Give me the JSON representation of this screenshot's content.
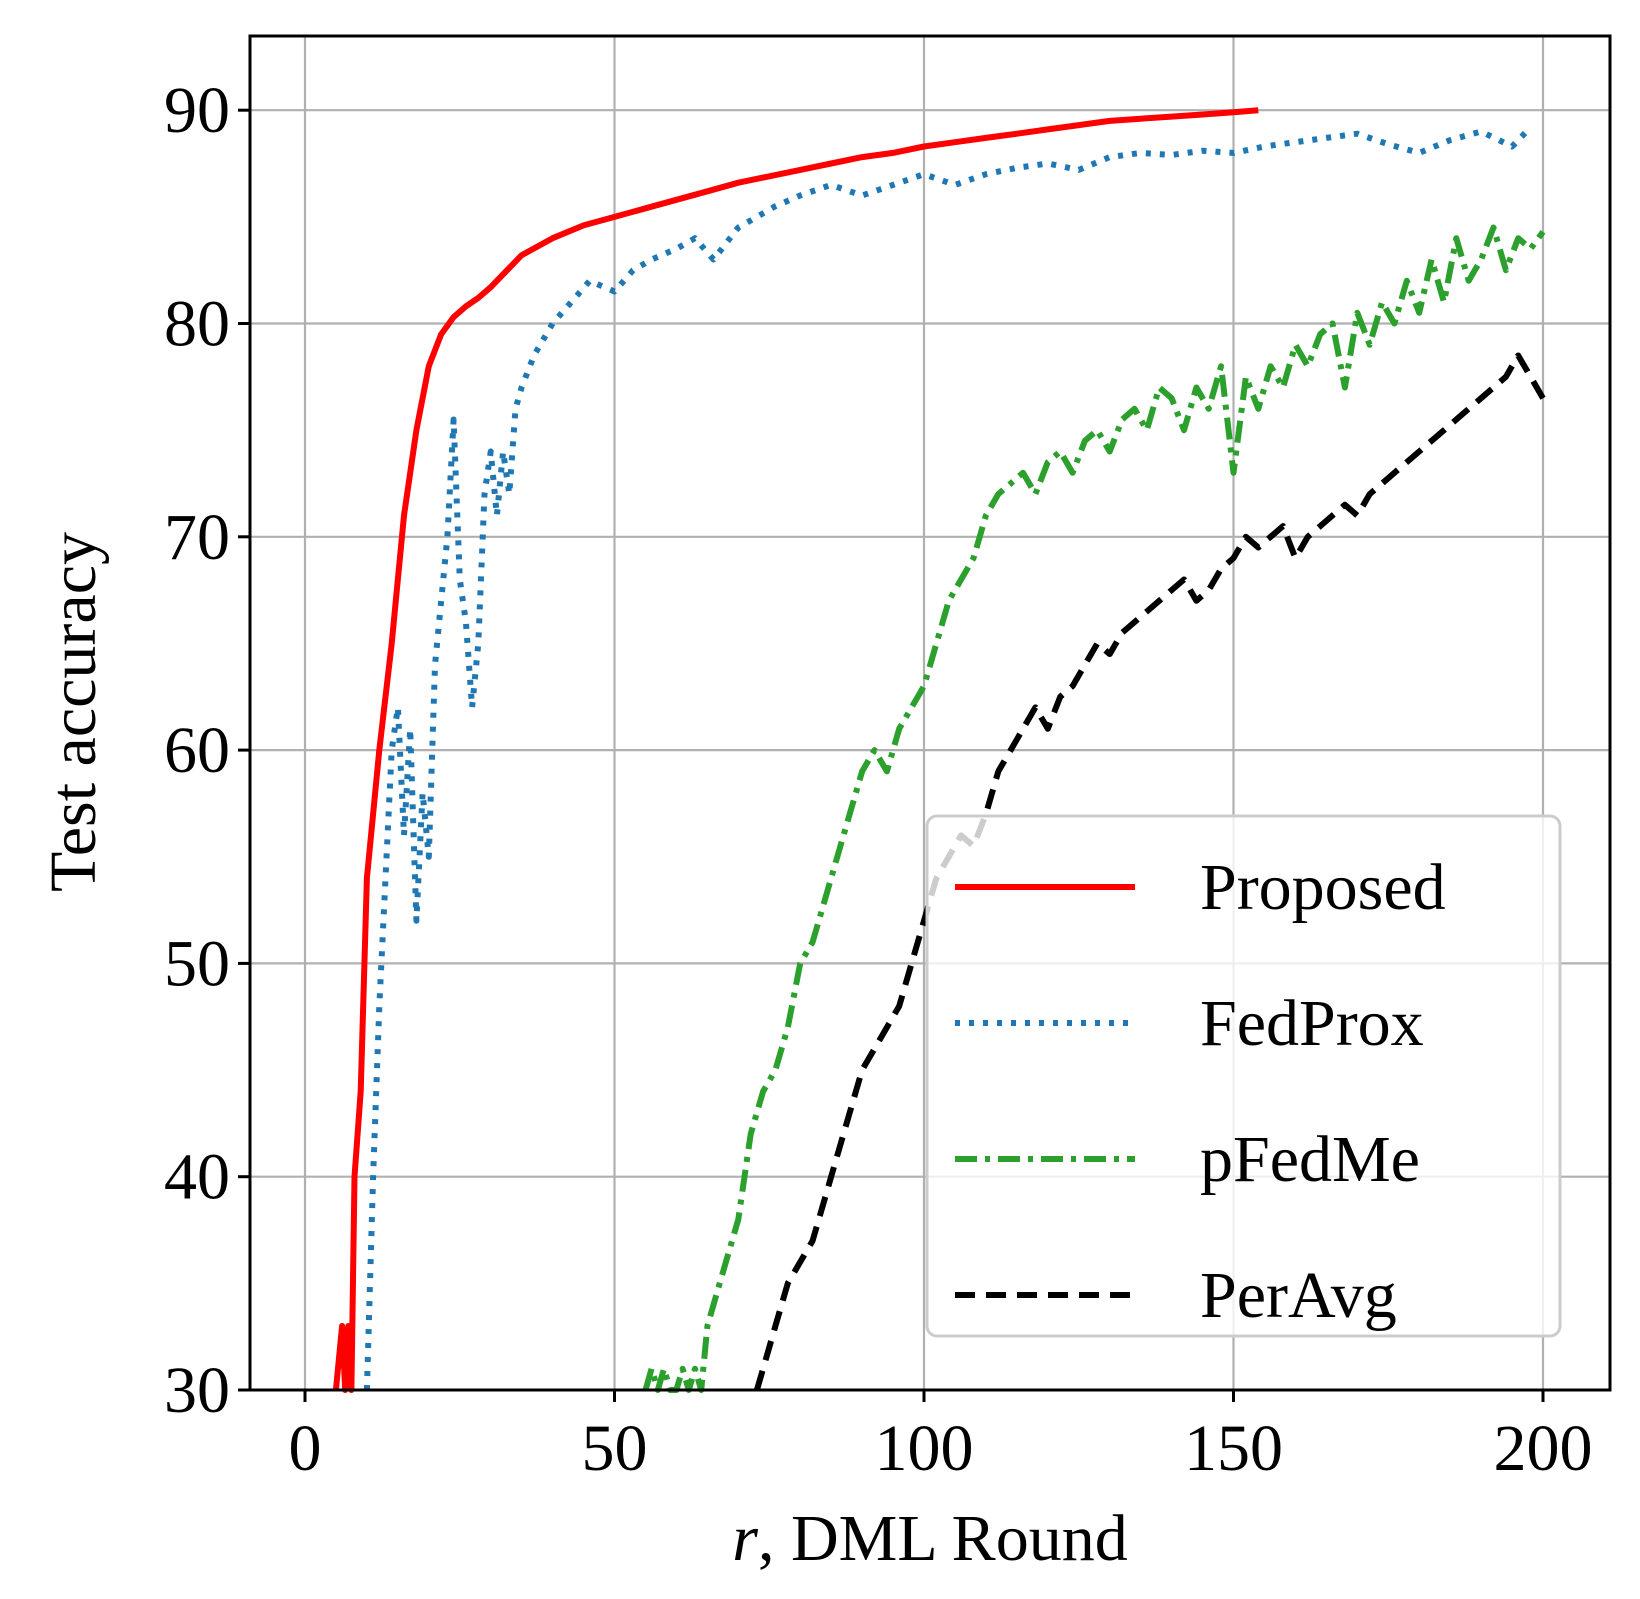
{
  "chart_data": {
    "type": "line",
    "xlabel_var": "r",
    "xlabel_rest": ", DML Round",
    "ylabel": "Test accuracy",
    "xlim": [
      -10,
      210
    ],
    "ylim": [
      30,
      93
    ],
    "xticks": [
      0,
      50,
      100,
      150,
      200
    ],
    "yticks": [
      30,
      40,
      50,
      60,
      70,
      80,
      90
    ],
    "grid": true,
    "legend_position": "lower-right",
    "series": [
      {
        "name": "Proposed",
        "color": "#ff0000",
        "style": "solid",
        "x": [
          5,
          6,
          6.5,
          7,
          7.5,
          8,
          9,
          10,
          12,
          14,
          16,
          18,
          20,
          22,
          24,
          26,
          28,
          30,
          35,
          40,
          45,
          50,
          55,
          60,
          65,
          70,
          75,
          80,
          85,
          90,
          95,
          100,
          105,
          110,
          115,
          120,
          125,
          130,
          135,
          140,
          145,
          150,
          154
        ],
        "y": [
          30,
          33,
          30,
          33,
          30,
          40,
          44,
          54,
          60,
          65,
          71,
          75,
          78,
          79.5,
          80.3,
          80.8,
          81.2,
          81.7,
          83.2,
          84,
          84.6,
          85,
          85.4,
          85.8,
          86.2,
          86.6,
          86.9,
          87.2,
          87.5,
          87.8,
          88,
          88.3,
          88.5,
          88.7,
          88.9,
          89.1,
          89.3,
          89.5,
          89.6,
          89.7,
          89.8,
          89.9,
          90
        ]
      },
      {
        "name": "FedProx",
        "color": "#1f77b4",
        "style": "dotted",
        "x": [
          10,
          11,
          12,
          13,
          14,
          15,
          16,
          17,
          18,
          19,
          20,
          21,
          22,
          23,
          24,
          25,
          26,
          27,
          28,
          29,
          30,
          31,
          32,
          33,
          34,
          35,
          37,
          40,
          43,
          46,
          50,
          53,
          56,
          60,
          63,
          66,
          70,
          73,
          76,
          80,
          85,
          90,
          95,
          100,
          105,
          110,
          115,
          120,
          125,
          130,
          135,
          140,
          145,
          150,
          155,
          160,
          165,
          170,
          175,
          180,
          185,
          190,
          195,
          198
        ],
        "y": [
          30,
          40,
          48,
          54,
          60,
          62,
          56,
          61,
          52,
          58,
          55,
          64,
          67,
          70,
          75.5,
          68,
          66,
          62,
          65,
          72,
          74,
          71,
          74,
          72,
          76,
          77,
          78.5,
          80,
          81,
          82,
          81.5,
          82.5,
          83,
          83.5,
          84,
          83,
          84.5,
          85,
          85.5,
          86,
          86.5,
          86,
          86.5,
          87,
          86.5,
          87,
          87.3,
          87.5,
          87.2,
          87.8,
          88,
          87.9,
          88.1,
          88,
          88.3,
          88.5,
          88.7,
          88.9,
          88.4,
          88,
          88.6,
          89,
          88.3,
          89.2
        ]
      },
      {
        "name": "pFedMe",
        "color": "#2ca02c",
        "style": "dashdot",
        "x": [
          55,
          56,
          57,
          58,
          59,
          60,
          61,
          62,
          63,
          64,
          65,
          67,
          70,
          72,
          74,
          76,
          78,
          80,
          82,
          84,
          86,
          88,
          90,
          92,
          94,
          96,
          98,
          100,
          102,
          104,
          106,
          108,
          110,
          112,
          114,
          116,
          118,
          120,
          122,
          124,
          126,
          128,
          130,
          132,
          134,
          136,
          138,
          140,
          142,
          144,
          146,
          148,
          150,
          152,
          154,
          156,
          158,
          160,
          162,
          164,
          166,
          168,
          170,
          172,
          174,
          176,
          178,
          180,
          182,
          184,
          186,
          188,
          190,
          192,
          194,
          196,
          198,
          200
        ],
        "y": [
          30,
          31,
          30,
          31,
          30,
          30,
          31,
          30,
          31,
          30,
          33,
          35,
          38,
          42,
          44,
          45,
          47,
          50,
          51,
          53,
          55,
          57,
          59,
          60,
          59,
          61,
          62,
          63,
          65,
          67,
          68,
          69,
          71,
          72,
          72.5,
          73,
          72,
          73.5,
          74,
          73,
          74.5,
          75,
          74,
          75.5,
          76,
          75,
          77,
          76.5,
          75,
          77,
          76,
          78,
          73,
          77.5,
          76,
          78,
          77,
          79,
          78,
          79.5,
          80,
          77,
          80.5,
          79,
          81,
          80,
          82,
          80.5,
          83,
          81,
          84,
          82,
          83,
          84.5,
          82.5,
          84,
          83.5,
          84.3
        ]
      },
      {
        "name": "PerAvg",
        "color": "#000000",
        "style": "dashed",
        "x": [
          73,
          74,
          76,
          78,
          80,
          82,
          84,
          86,
          88,
          90,
          92,
          94,
          96,
          98,
          100,
          102,
          104,
          106,
          108,
          110,
          112,
          114,
          116,
          118,
          120,
          122,
          124,
          126,
          128,
          130,
          132,
          134,
          136,
          138,
          140,
          142,
          144,
          146,
          148,
          150,
          152,
          154,
          156,
          158,
          160,
          162,
          164,
          166,
          168,
          170,
          172,
          174,
          176,
          178,
          180,
          182,
          184,
          186,
          188,
          190,
          192,
          194,
          196,
          198,
          200
        ],
        "y": [
          30,
          31,
          33,
          35,
          36,
          37,
          39,
          41,
          43,
          45,
          46,
          47,
          48,
          50,
          52,
          54,
          55,
          56,
          55.5,
          57,
          59,
          60,
          61,
          62,
          61,
          62.5,
          63,
          64,
          65,
          64.5,
          65.5,
          66,
          66.5,
          67,
          67.5,
          68,
          67,
          67.5,
          68.5,
          69,
          70,
          69.5,
          70,
          70.5,
          69,
          70,
          70.5,
          71,
          71.5,
          71,
          72,
          72.5,
          73,
          73.5,
          74,
          74.5,
          75,
          75.5,
          76,
          76.5,
          77,
          77.5,
          78.5,
          77.5,
          76.5
        ]
      }
    ]
  }
}
